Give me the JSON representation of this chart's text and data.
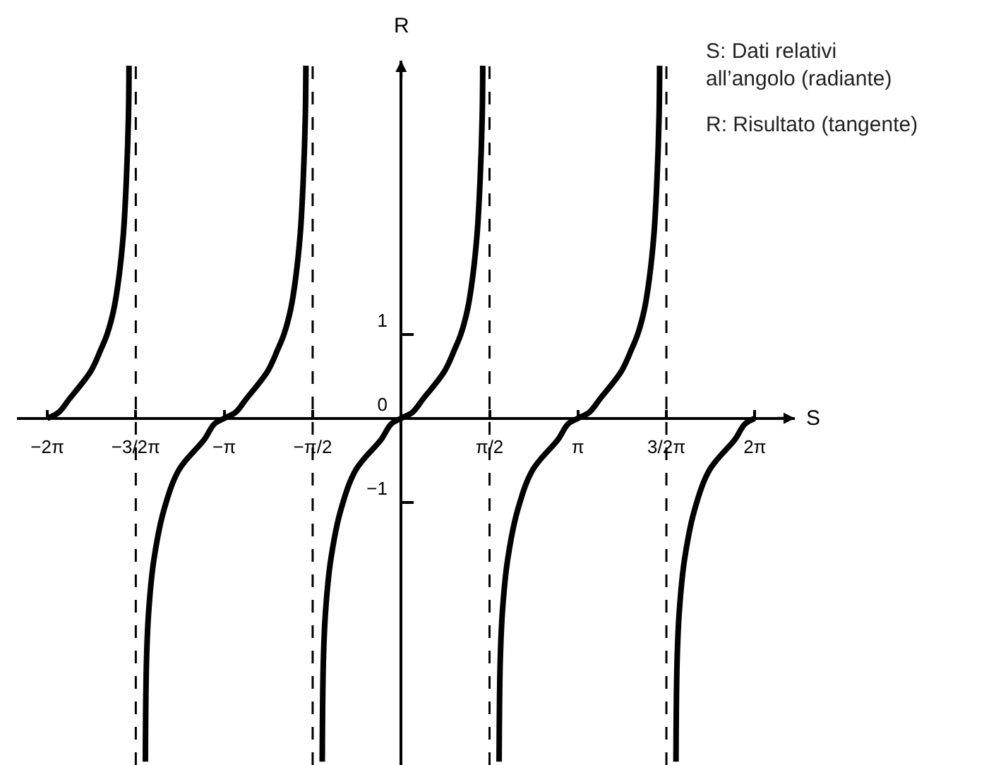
{
  "chart_data": {
    "type": "line",
    "xlabel": "S",
    "ylabel": "R",
    "xlim": [
      -6.82,
      6.99
    ],
    "ylim": [
      -4.13,
      4.26
    ],
    "xticks": [
      {
        "value": -6.28,
        "label": "−2π"
      },
      {
        "value": -4.71,
        "label": "−3/2π"
      },
      {
        "value": -3.14,
        "label": "−π"
      },
      {
        "value": -1.57,
        "label": "−π/2"
      },
      {
        "value": 1.57,
        "label": "π/2"
      },
      {
        "value": 3.14,
        "label": "π"
      },
      {
        "value": 4.71,
        "label": "3/2π"
      },
      {
        "value": 6.28,
        "label": "2π"
      }
    ],
    "yticks": [
      -1,
      0,
      1
    ],
    "series": [
      {
        "color": "#000000",
        "x": [
          -6.28,
          -6.08,
          -5.89,
          -5.51,
          -5.33,
          -5.22,
          -5.1,
          -5.01,
          -4.93,
          -4.88,
          -4.84,
          -4.83
        ],
        "values": [
          0,
          0.07,
          0.23,
          0.56,
          0.82,
          1.0,
          1.3,
          1.68,
          2.2,
          2.8,
          3.6,
          4.2
        ]
      },
      {
        "color": "#000000",
        "x": [
          -4.54,
          -4.52,
          -4.48,
          -4.39,
          -4.21,
          -3.94,
          -3.49,
          -3.32,
          -3.14,
          -2.94,
          -2.75,
          -2.37,
          -2.19,
          -2.08,
          -1.96,
          -1.87,
          -1.79,
          -1.74,
          -1.7,
          -1.69
        ],
        "values": [
          -4.09,
          -2.89,
          -2.29,
          -1.69,
          -1.09,
          -0.61,
          -0.25,
          -0.07,
          0,
          0.07,
          0.23,
          0.56,
          0.82,
          1.0,
          1.3,
          1.68,
          2.2,
          2.8,
          3.6,
          4.2
        ]
      },
      {
        "color": "#000000",
        "x": [
          -1.4,
          -1.38,
          -1.34,
          -1.25,
          -1.07,
          -0.8,
          -0.35,
          -0.18,
          0,
          0.2,
          0.39,
          0.77,
          0.95,
          1.06,
          1.18,
          1.27,
          1.35,
          1.4,
          1.44,
          1.45
        ],
        "values": [
          -4.09,
          -2.89,
          -2.29,
          -1.69,
          -1.09,
          -0.61,
          -0.25,
          -0.07,
          0,
          0.07,
          0.23,
          0.56,
          0.82,
          1.0,
          1.3,
          1.68,
          2.2,
          2.8,
          3.6,
          4.2
        ]
      },
      {
        "color": "#000000",
        "x": [
          1.74,
          1.76,
          1.8,
          1.89,
          2.07,
          2.34,
          2.79,
          2.96,
          3.14,
          3.34,
          3.53,
          3.91,
          4.09,
          4.2,
          4.32,
          4.41,
          4.49,
          4.54,
          4.58,
          4.59
        ],
        "values": [
          -4.09,
          -2.89,
          -2.29,
          -1.69,
          -1.09,
          -0.61,
          -0.25,
          -0.07,
          0,
          0.07,
          0.23,
          0.56,
          0.82,
          1.0,
          1.3,
          1.68,
          2.2,
          2.8,
          3.6,
          4.2
        ]
      },
      {
        "color": "#000000",
        "x": [
          4.88,
          4.9,
          4.94,
          5.03,
          5.21,
          5.48,
          5.93,
          6.1,
          6.28
        ],
        "values": [
          -4.09,
          -2.89,
          -2.29,
          -1.69,
          -1.09,
          -0.61,
          -0.25,
          -0.07,
          0
        ]
      }
    ],
    "ref_lines": [
      {
        "axis": "x",
        "value": -4.71,
        "line_style": "dashed",
        "color": "#000000"
      },
      {
        "axis": "x",
        "value": -1.57,
        "line_style": "dashed",
        "color": "#000000"
      },
      {
        "axis": "x",
        "value": 1.57,
        "line_style": "dashed",
        "color": "#000000"
      },
      {
        "axis": "x",
        "value": 4.71,
        "line_style": "dashed",
        "color": "#000000"
      }
    ],
    "annotations": [
      "S: Dati relativi\nall’angolo (radiante)",
      "R: Risultato (tangente)"
    ],
    "marker": "none",
    "line_style": "solid"
  }
}
